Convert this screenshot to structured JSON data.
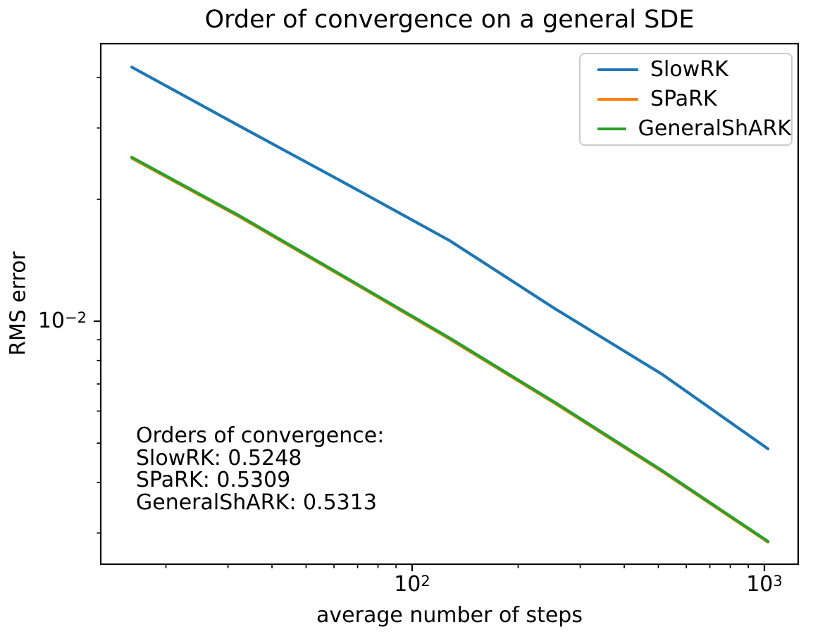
{
  "chart_data": {
    "type": "line",
    "title": "Order of convergence on a general SDE",
    "xlabel": "average number of steps",
    "ylabel": "RMS error",
    "xscale": "log",
    "yscale": "log",
    "grid": false,
    "legend_position": "upper right",
    "xlim": [
      13.06,
      1247.4
    ],
    "ylim": [
      0.002512,
      0.04845
    ],
    "x": [
      16,
      32,
      64,
      128,
      256,
      512,
      1024
    ],
    "series": [
      {
        "name": "SlowRK",
        "color": "#1f77b4",
        "values": [
          0.0424,
          0.0305,
          0.022,
          0.0158,
          0.0107,
          0.0074,
          0.00484
        ]
      },
      {
        "name": "SPaRK",
        "color": "#ff7f0e",
        "values": [
          0.02527,
          0.01821,
          0.01284,
          0.00903,
          0.00625,
          0.00426,
          0.00285
        ]
      },
      {
        "name": "GeneralShARK",
        "color": "#2ca02c",
        "values": [
          0.0254,
          0.0183,
          0.0129,
          0.00908,
          0.00628,
          0.00428,
          0.00286
        ]
      }
    ],
    "x_ticks_major": [
      100,
      1000
    ],
    "x_ticks_minor": [
      20,
      30,
      40,
      50,
      60,
      70,
      80,
      90,
      200,
      300,
      400,
      500,
      600,
      700,
      800,
      900
    ],
    "y_ticks_major": [
      0.01
    ],
    "y_ticks_minor": [
      0.04,
      0.03,
      0.02,
      0.009,
      0.008,
      0.007,
      0.006,
      0.005,
      0.004,
      0.003
    ],
    "x_tick_labels": [
      {
        "base": "10",
        "exp": "2"
      },
      {
        "base": "10",
        "exp": "3"
      }
    ],
    "y_tick_labels": [
      {
        "base": "10",
        "exp": "−2"
      }
    ]
  },
  "annotation": {
    "lines": [
      "Orders of convergence:",
      "SlowRK: 0.5248",
      "SPaRK: 0.5309",
      "GeneralShARK: 0.5313"
    ]
  }
}
